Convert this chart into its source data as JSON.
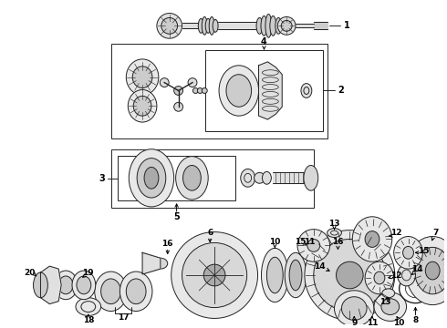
{
  "bg": "#ffffff",
  "fig_w": 4.9,
  "fig_h": 3.6,
  "dpi": 100,
  "lc": "#222222",
  "lw": 0.7,
  "fs": 6.5,
  "fw": "bold"
}
